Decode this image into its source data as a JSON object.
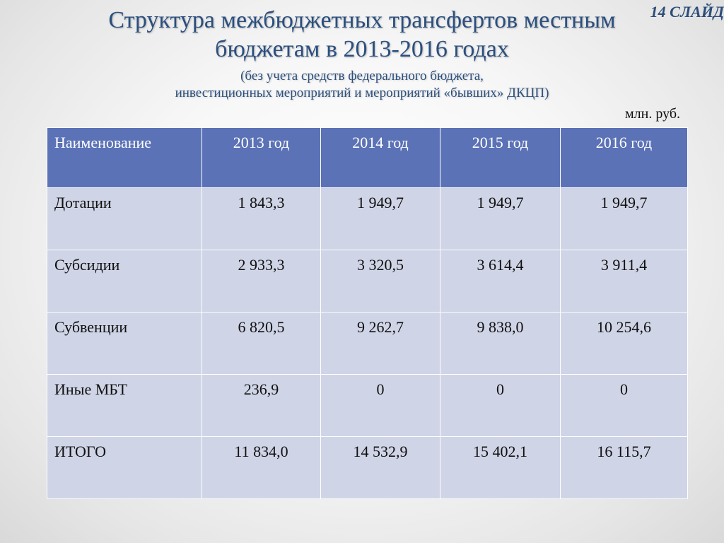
{
  "slide": {
    "number_label": "14 СЛАЙД",
    "title_line1": "Структура межбюджетных трансфертов местным",
    "title_line2": "бюджетам в 2013-2016 годах",
    "subtitle_line1": "(без учета средств федерального бюджета,",
    "subtitle_line2": "инвестиционных мероприятий и мероприятий «бывших» ДКЦП)",
    "units": "млн. руб."
  },
  "table": {
    "headers": [
      "Наименование",
      "2013 год",
      "2014 год",
      "2015 год",
      "2016 год"
    ],
    "rows": [
      {
        "name": "Дотации",
        "values": [
          "1 843,3",
          "1 949,7",
          "1 949,7",
          "1 949,7"
        ]
      },
      {
        "name": "Субсидии",
        "values": [
          "2 933,3",
          "3 320,5",
          "3 614,4",
          "3 911,4"
        ]
      },
      {
        "name": "Субвенции",
        "values": [
          "6 820,5",
          "9 262,7",
          "9 838,0",
          "10 254,6"
        ]
      },
      {
        "name": "Иные МБТ",
        "values": [
          "236,9",
          "0",
          "0",
          "0"
        ]
      },
      {
        "name": "ИТОГО",
        "values": [
          "11 834,0",
          "14 532,9",
          "15 402,1",
          "16 115,7"
        ]
      }
    ]
  },
  "colors": {
    "header_bg": "#5b72b6",
    "row_bg": "#cfd4e6",
    "title": "#2b4f7e"
  }
}
